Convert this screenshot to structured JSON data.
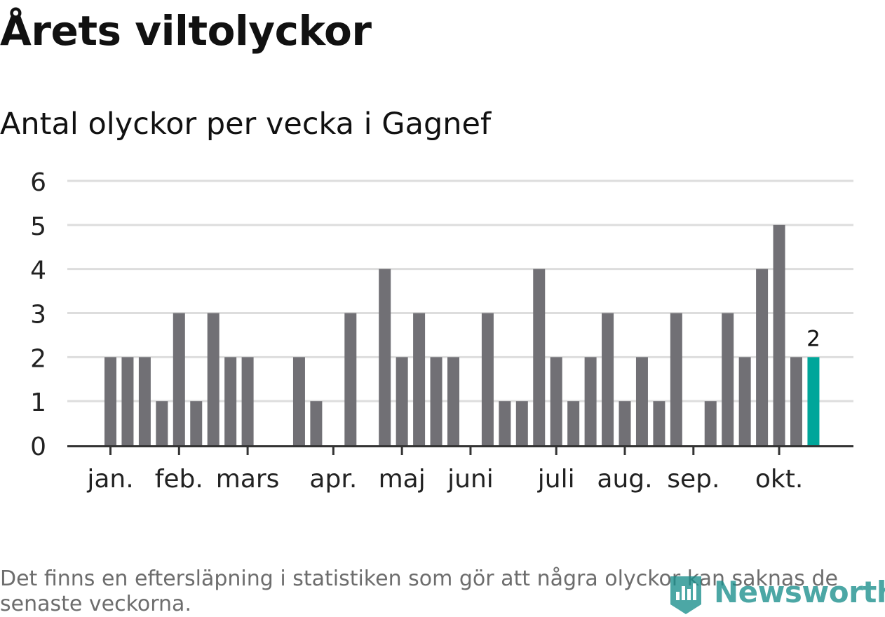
{
  "title": "Årets viltolyckor",
  "subtitle": "Antal olyckor per vecka i Gagnef",
  "footnote": "Det finns en eftersläpning i statistiken som gör att några olyckor kan saknas de senaste veckorna.",
  "logo": {
    "text": "Newsworthy",
    "icon": "newsworthy-logo-icon"
  },
  "colors": {
    "bar": "#717075",
    "highlight": "#00a69a",
    "grid": "#dddddd",
    "axis": "#333333"
  },
  "chart_data": {
    "type": "bar",
    "ylim": [
      0,
      6
    ],
    "yticks": [
      0,
      1,
      2,
      3,
      4,
      5,
      6
    ],
    "grid": true,
    "x_month_ticks": [
      {
        "label": "jan.",
        "week": 1
      },
      {
        "label": "feb.",
        "week": 5
      },
      {
        "label": "mars",
        "week": 9
      },
      {
        "label": "apr.",
        "week": 14
      },
      {
        "label": "maj",
        "week": 18
      },
      {
        "label": "juni",
        "week": 22
      },
      {
        "label": "juli",
        "week": 27
      },
      {
        "label": "aug.",
        "week": 31
      },
      {
        "label": "sep.",
        "week": 35
      },
      {
        "label": "okt.",
        "week": 40
      }
    ],
    "weeks": [
      1,
      2,
      3,
      4,
      5,
      6,
      7,
      8,
      9,
      10,
      11,
      12,
      13,
      14,
      15,
      16,
      17,
      18,
      19,
      20,
      21,
      22,
      23,
      24,
      25,
      26,
      27,
      28,
      29,
      30,
      31,
      32,
      33,
      34,
      35,
      36,
      37,
      38,
      39,
      40,
      41,
      42
    ],
    "values": [
      2,
      2,
      2,
      1,
      3,
      1,
      3,
      2,
      2,
      0,
      0,
      2,
      1,
      0,
      3,
      0,
      4,
      2,
      3,
      2,
      2,
      0,
      3,
      1,
      1,
      4,
      2,
      1,
      2,
      3,
      1,
      2,
      1,
      3,
      0,
      1,
      3,
      2,
      4,
      5,
      2,
      2
    ],
    "highlight_index": 41,
    "highlight_label": "2"
  }
}
